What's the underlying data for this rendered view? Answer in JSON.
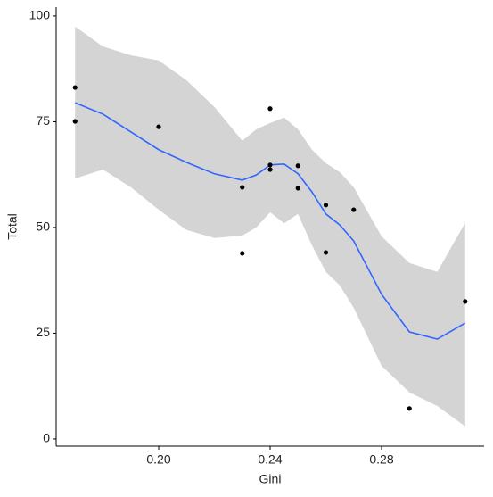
{
  "chart_data": {
    "type": "scatter",
    "x_label": "Gini",
    "y_label": "Total",
    "x": [
      0.17,
      0.17,
      0.2,
      0.23,
      0.23,
      0.24,
      0.24,
      0.24,
      0.25,
      0.25,
      0.26,
      0.26,
      0.27,
      0.29,
      0.31
    ],
    "y": [
      83.1,
      75.1,
      73.8,
      59.5,
      43.9,
      78.1,
      64.8,
      63.7,
      64.6,
      59.3,
      55.3,
      44.1,
      54.2,
      7.2,
      32.5
    ],
    "point_color": "#000000",
    "smooth": {
      "color": "#3366FF",
      "band_color": "#d4d4d4",
      "x": [
        0.17,
        0.18,
        0.19,
        0.2,
        0.21,
        0.22,
        0.23,
        0.235,
        0.24,
        0.245,
        0.25,
        0.255,
        0.26,
        0.265,
        0.27,
        0.28,
        0.29,
        0.3,
        0.31
      ],
      "values": [
        79.5,
        76.8,
        72.6,
        68.4,
        65.4,
        62.7,
        61.2,
        62.4,
        64.8,
        65.0,
        62.7,
        58.4,
        53.2,
        50.6,
        46.8,
        34.2,
        25.3,
        23.6,
        27.4
      ],
      "upper": [
        97.5,
        92.8,
        90.7,
        89.5,
        84.8,
        78.5,
        70.5,
        73.2,
        74.7,
        76.0,
        73.2,
        68.4,
        65.2,
        63.1,
        59.5,
        47.9,
        41.6,
        39.5,
        51.1
      ],
      "lower": [
        61.6,
        63.7,
        59.5,
        54.2,
        49.4,
        47.5,
        48.1,
        50.0,
        53.6,
        51.0,
        53.2,
        45.8,
        39.5,
        36.3,
        31.0,
        17.3,
        11.0,
        7.8,
        3.0
      ]
    },
    "xlim": [
      0.1632,
      0.3168
    ],
    "ylim": [
      -1.7,
      102.1
    ],
    "xticks": [
      {
        "value": 0.2,
        "label": "0.20"
      },
      0.24,
      0.28
    ],
    "yticks": [
      0,
      25,
      50,
      75,
      100
    ]
  }
}
